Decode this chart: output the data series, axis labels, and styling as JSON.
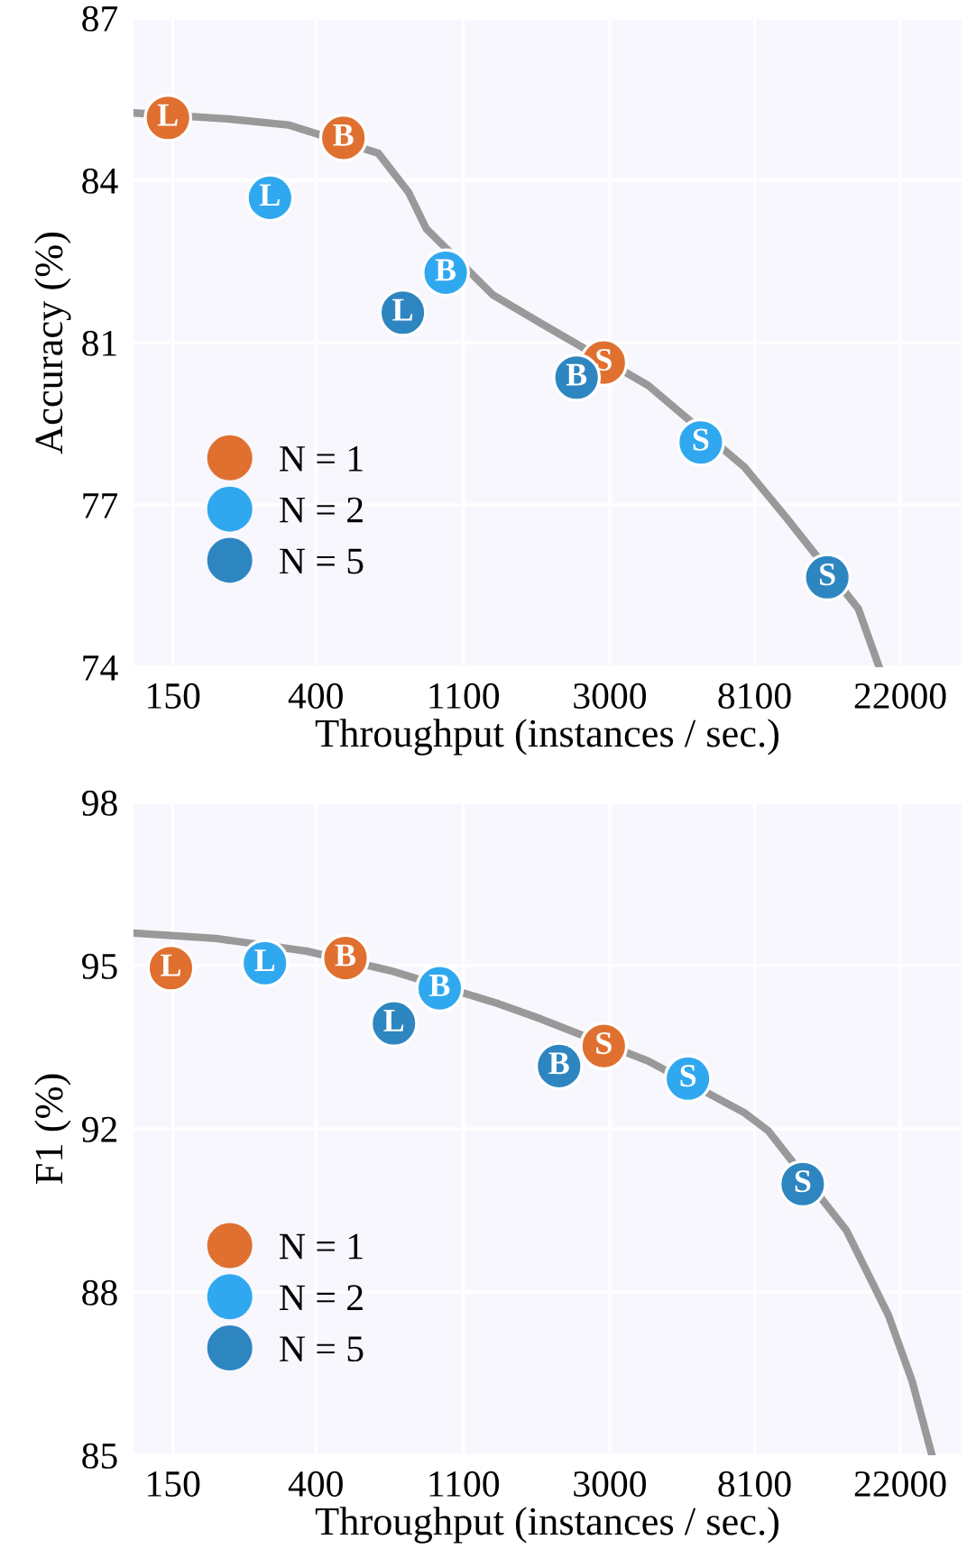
{
  "chart_data": [
    {
      "type": "scatter",
      "xlabel": "Throughput (instances / sec.)",
      "ylabel": "Accuracy (%)",
      "log": "x",
      "grid": true,
      "legend": "bottom left",
      "marker": "circle",
      "xlim": [
        114.5,
        33500
      ],
      "xticks": [
        150,
        400,
        1100,
        3000,
        8100,
        22000
      ],
      "ylim": [
        74,
        87
      ],
      "yticks": [
        74,
        {
          "value": 77.25,
          "label": "77"
        },
        {
          "value": 80.5,
          "label": "81"
        },
        {
          "value": 83.75,
          "label": "84"
        },
        87
      ],
      "series": [
        {
          "type": "line",
          "color": "#999999",
          "marker": "none",
          "x": [
            114.5,
            219,
            331,
            614,
            755,
            853,
            1344,
            1868,
            3910,
            7550,
            10080,
            16500,
            19040
          ],
          "values": [
            85.1,
            84.98,
            84.86,
            84.29,
            83.51,
            82.78,
            81.46,
            80.89,
            79.64,
            78.01,
            76.99,
            75.17,
            74.0
          ]
        },
        {
          "name": "N = 1",
          "color": "#e07030",
          "x": [
            145,
            483,
            2880
          ],
          "values": [
            85.0,
            84.6,
            80.1
          ],
          "value_labels": [
            "L",
            "B",
            "S"
          ]
        },
        {
          "name": "N = 2",
          "color": "#30a8f0",
          "x": [
            292,
            974,
            5600
          ],
          "values": [
            83.4,
            81.9,
            78.5
          ],
          "value_labels": [
            "L",
            "B",
            "S"
          ]
        },
        {
          "name": "N = 5",
          "color": "#2e86c1",
          "x": [
            726,
            2390,
            13340
          ],
          "values": [
            81.1,
            79.8,
            75.8
          ],
          "value_labels": [
            "L",
            "B",
            "S"
          ]
        }
      ]
    },
    {
      "type": "scatter",
      "xlabel": "Throughput (instances / sec.)",
      "ylabel": "F1 (%)",
      "log": "x",
      "grid": true,
      "legend": "bottom left",
      "marker": "circle",
      "xlim": [
        114.5,
        33500
      ],
      "xticks": [
        150,
        400,
        1100,
        3000,
        8100,
        22000
      ],
      "ylim": [
        85,
        98
      ],
      "yticks": [
        85,
        {
          "value": 88.25,
          "label": "88"
        },
        {
          "value": 91.5,
          "label": "92"
        },
        {
          "value": 94.75,
          "label": "95"
        },
        98
      ],
      "series": [
        {
          "type": "line",
          "color": "#999999",
          "marker": "none",
          "x": [
            114.5,
            202,
            375,
            667,
            1400,
            1868,
            3910,
            7550,
            8900,
            15200,
            20280,
            23880,
            27340
          ],
          "values": [
            95.4,
            95.29,
            95.04,
            94.65,
            93.99,
            93.69,
            92.85,
            91.82,
            91.46,
            89.48,
            87.79,
            86.47,
            85.0
          ]
        },
        {
          "name": "N = 1",
          "color": "#e07030",
          "x": [
            148,
            490,
            2880
          ],
          "values": [
            94.7,
            94.9,
            93.15
          ],
          "value_labels": [
            "L",
            "B",
            "S"
          ]
        },
        {
          "name": "N = 2",
          "color": "#30a8f0",
          "x": [
            282,
            935,
            5130
          ],
          "values": [
            94.8,
            94.3,
            92.5
          ],
          "value_labels": [
            "L",
            "B",
            "S"
          ]
        },
        {
          "name": "N = 5",
          "color": "#2e86c1",
          "x": [
            683,
            2120,
            11270
          ],
          "values": [
            93.6,
            92.75,
            90.4
          ],
          "value_labels": [
            "L",
            "B",
            "S"
          ]
        }
      ]
    }
  ]
}
